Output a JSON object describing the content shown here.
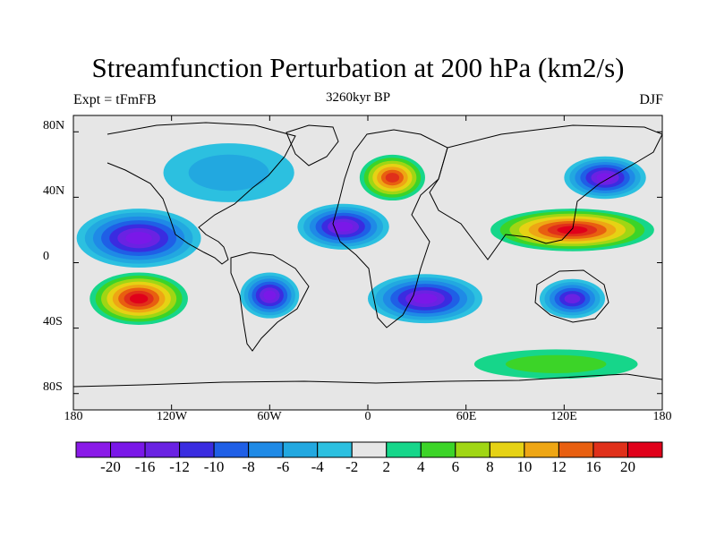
{
  "title": "Streamfunction Perturbation at 200 hPa (km2/s)",
  "left_string": "Expt = tFmFB",
  "center_string": "3260kyr BP",
  "right_string": "DJF",
  "map": {
    "projection": "cylindrical-equidistant",
    "lon_range": [
      -180,
      180
    ],
    "lat_range": [
      -90,
      90
    ],
    "lat_tick_labels": [
      "80N",
      "40N",
      "0",
      "40S",
      "80S"
    ],
    "lon_tick_labels": [
      "180",
      "120W",
      "60W",
      "0",
      "60E",
      "120E",
      "180"
    ]
  },
  "colorbar": {
    "levels": [
      "-20",
      "-16",
      "-12",
      "-10",
      "-8",
      "-6",
      "-4",
      "-2",
      "2",
      "4",
      "6",
      "8",
      "10",
      "12",
      "16",
      "20"
    ],
    "colors": [
      "#8A1AE8",
      "#7A18E8",
      "#6A22E2",
      "#3A2CE0",
      "#1F5FE6",
      "#1F8AE6",
      "#22A8E0",
      "#2CC0E0",
      "#E6E6E6",
      "#16D68A",
      "#3CD428",
      "#A0D614",
      "#E6D214",
      "#EEA614",
      "#E85F10",
      "#E0301A",
      "#E0001A"
    ]
  },
  "fields": [
    {
      "name": "low-pacific-north",
      "lon": -140,
      "lat": 15,
      "rx": 38,
      "ry": 18,
      "level": -16
    },
    {
      "name": "low-atlantic-north",
      "lon": -15,
      "lat": 22,
      "rx": 28,
      "ry": 14,
      "level": -16
    },
    {
      "name": "low-south-america",
      "lon": -60,
      "lat": -20,
      "rx": 18,
      "ry": 14,
      "level": -16
    },
    {
      "name": "low-south-atlantic-africa",
      "lon": 35,
      "lat": -22,
      "rx": 35,
      "ry": 15,
      "level": -16
    },
    {
      "name": "low-indian-australia",
      "lon": 125,
      "lat": -22,
      "rx": 20,
      "ry": 12,
      "level": -12
    },
    {
      "name": "low-north-pacific-asia",
      "lon": 145,
      "lat": 52,
      "rx": 25,
      "ry": 13,
      "level": -16
    },
    {
      "name": "low-canada",
      "lon": -85,
      "lat": 55,
      "rx": 40,
      "ry": 18,
      "level": -4
    },
    {
      "name": "high-europe",
      "lon": 15,
      "lat": 52,
      "rx": 20,
      "ry": 14,
      "level": 16
    },
    {
      "name": "high-asia-subtropics",
      "lon": 125,
      "lat": 20,
      "rx": 50,
      "ry": 13,
      "level": 20
    },
    {
      "name": "high-south-pacific",
      "lon": -140,
      "lat": -22,
      "rx": 30,
      "ry": 16,
      "level": 20
    },
    {
      "name": "high-southern-ocean",
      "lon": 115,
      "lat": -62,
      "rx": 50,
      "ry": 9,
      "level": 4
    }
  ]
}
